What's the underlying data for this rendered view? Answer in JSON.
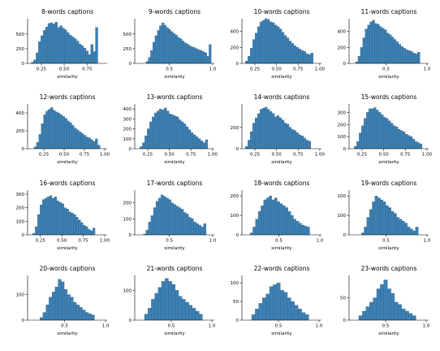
{
  "chart_data": [
    {
      "type": "bar",
      "title": "8-words captions",
      "xlabel": "similarity",
      "ylabel": "",
      "xlim": [
        0.1,
        0.97
      ],
      "ylim": [
        0,
        760
      ],
      "xticks": [
        0.25,
        0.5,
        0.75
      ],
      "xtick_labels": [
        "0.25",
        "0.50",
        "0.75"
      ],
      "yticks": [
        0,
        250,
        500
      ],
      "ytick_labels": [
        "0",
        "250",
        "500"
      ],
      "bin_start": 0.14,
      "bin_width": 0.026,
      "values": [
        20,
        60,
        180,
        370,
        470,
        560,
        620,
        680,
        690,
        670,
        700,
        610,
        640,
        600,
        570,
        520,
        480,
        450,
        420,
        380,
        330,
        300,
        260,
        210,
        150,
        320,
        200,
        610
      ]
    },
    {
      "type": "bar",
      "title": "9-words captions",
      "xlabel": "similarity",
      "ylabel": "",
      "xlim": [
        0.1,
        1.02
      ],
      "ylim": [
        0,
        760
      ],
      "xticks": [
        0.5,
        1.0
      ],
      "xtick_labels": [
        "0.5",
        "1.0"
      ],
      "yticks": [
        0,
        250,
        500
      ],
      "ytick_labels": [
        "0",
        "250",
        "500"
      ],
      "bin_start": 0.23,
      "bin_width": 0.026,
      "values": [
        30,
        100,
        220,
        360,
        470,
        560,
        640,
        690,
        650,
        610,
        580,
        540,
        510,
        480,
        440,
        420,
        380,
        350,
        330,
        300,
        280,
        270,
        250,
        230,
        220,
        200,
        180,
        120,
        320
      ]
    },
    {
      "type": "bar",
      "title": "10-words captions",
      "xlabel": "similarity",
      "ylabel": "",
      "xlim": [
        0.1,
        1.02
      ],
      "ylim": [
        0,
        560
      ],
      "xticks": [
        0.25,
        0.5,
        0.75,
        1.0
      ],
      "xtick_labels": [
        "0.25",
        "0.50",
        "0.75",
        "1.00"
      ],
      "yticks": [
        0,
        200,
        400
      ],
      "ytick_labels": [
        "0",
        "200",
        "400"
      ],
      "bin_start": 0.14,
      "bin_width": 0.028,
      "values": [
        30,
        90,
        190,
        300,
        380,
        460,
        520,
        540,
        560,
        550,
        520,
        510,
        480,
        460,
        430,
        390,
        350,
        320,
        280,
        250,
        220,
        200,
        180,
        160,
        150,
        120,
        110,
        130
      ]
    },
    {
      "type": "bar",
      "title": "11-words captions",
      "xlabel": "similarity",
      "ylabel": "",
      "xlim": [
        0.05,
        1.02
      ],
      "ylim": [
        0,
        560
      ],
      "xticks": [
        0.5,
        1.0
      ],
      "xtick_labels": [
        "0.5",
        "1.0"
      ],
      "yticks": [
        0,
        200,
        400
      ],
      "ytick_labels": [
        "0",
        "200",
        "400"
      ],
      "bin_start": 0.13,
      "bin_width": 0.029,
      "values": [
        20,
        90,
        200,
        320,
        430,
        480,
        520,
        540,
        500,
        490,
        460,
        440,
        420,
        380,
        360,
        330,
        300,
        270,
        240,
        210,
        190,
        170,
        160,
        150,
        130,
        120,
        140
      ]
    },
    {
      "type": "bar",
      "title": "12-words captions",
      "xlabel": "similarity",
      "ylabel": "",
      "xlim": [
        0.05,
        1.03
      ],
      "ylim": [
        0,
        500
      ],
      "xticks": [
        0.25,
        0.5,
        0.75,
        1.0
      ],
      "xtick_labels": [
        "0.25",
        "0.50",
        "0.75",
        "1.00"
      ],
      "yticks": [
        0,
        200,
        400
      ],
      "ytick_labels": [
        "0",
        "200",
        "400"
      ],
      "bin_start": 0.13,
      "bin_width": 0.029,
      "values": [
        20,
        70,
        160,
        280,
        380,
        420,
        440,
        460,
        430,
        410,
        400,
        380,
        360,
        340,
        310,
        290,
        260,
        230,
        210,
        190,
        170,
        150,
        130,
        120,
        100,
        80,
        110,
        40
      ]
    },
    {
      "type": "bar",
      "title": "13-words captions",
      "xlabel": "similarity",
      "ylabel": "",
      "xlim": [
        0.1,
        1.02
      ],
      "ylim": [
        0,
        450
      ],
      "xticks": [
        0.25,
        0.5,
        0.75,
        1.0
      ],
      "xtick_labels": [
        "0.25",
        "0.50",
        "0.75",
        "1.00"
      ],
      "yticks": [
        0,
        100,
        200,
        300,
        400
      ],
      "ytick_labels": [
        "0",
        "100",
        "200",
        "300",
        "400"
      ],
      "bin_start": 0.16,
      "bin_width": 0.028,
      "values": [
        20,
        60,
        130,
        200,
        270,
        320,
        360,
        380,
        400,
        390,
        410,
        380,
        350,
        340,
        330,
        320,
        290,
        270,
        250,
        220,
        190,
        160,
        140,
        120,
        100,
        80,
        60,
        90
      ]
    },
    {
      "type": "bar",
      "title": "14-words captions",
      "xlabel": "similarity",
      "ylabel": "",
      "xlim": [
        0.1,
        1.02
      ],
      "ylim": [
        0,
        420
      ],
      "xticks": [
        0.25,
        0.5,
        0.75,
        1.0
      ],
      "xtick_labels": [
        "0.25",
        "0.50",
        "0.75",
        "1.00"
      ],
      "yticks": [
        0,
        200
      ],
      "ytick_labels": [
        "0",
        "200"
      ],
      "bin_start": 0.14,
      "bin_width": 0.028,
      "values": [
        20,
        80,
        160,
        240,
        290,
        330,
        370,
        380,
        390,
        370,
        350,
        330,
        300,
        310,
        290,
        270,
        240,
        230,
        200,
        180,
        170,
        150,
        130,
        120,
        100,
        80,
        70
      ]
    },
    {
      "type": "bar",
      "title": "15-words captions",
      "xlabel": "similarity",
      "ylabel": "",
      "xlim": [
        0.1,
        1.02
      ],
      "ylim": [
        0,
        370
      ],
      "xticks": [
        0.25,
        0.5,
        0.75,
        1.0
      ],
      "xtick_labels": [
        "0.25",
        "0.50",
        "0.75",
        "1.00"
      ],
      "yticks": [
        0,
        100,
        200,
        300
      ],
      "ytick_labels": [
        "0",
        "100",
        "200",
        "300"
      ],
      "bin_start": 0.16,
      "bin_width": 0.028,
      "values": [
        20,
        60,
        130,
        190,
        250,
        300,
        330,
        330,
        340,
        320,
        300,
        280,
        260,
        250,
        230,
        210,
        190,
        180,
        160,
        150,
        140,
        120,
        110,
        100,
        80,
        60,
        50,
        40
      ]
    },
    {
      "type": "bar",
      "title": "16-words captions",
      "xlabel": "similarity",
      "ylabel": "",
      "xlim": [
        0.1,
        1.03
      ],
      "ylim": [
        0,
        330
      ],
      "xticks": [
        0.25,
        0.5,
        0.75,
        1.0
      ],
      "xtick_labels": [
        "0.25",
        "0.50",
        "0.75",
        "1.00"
      ],
      "yticks": [
        0,
        100,
        200,
        300
      ],
      "ytick_labels": [
        "0",
        "100",
        "200",
        "300"
      ],
      "bin_start": 0.16,
      "bin_width": 0.028,
      "values": [
        10,
        60,
        150,
        220,
        260,
        270,
        280,
        290,
        270,
        280,
        250,
        240,
        230,
        200,
        190,
        170,
        160,
        150,
        130,
        110,
        90,
        70,
        60,
        40,
        30,
        50
      ]
    },
    {
      "type": "bar",
      "title": "17-words captions",
      "xlabel": "similarity",
      "ylabel": "",
      "xlim": [
        0.1,
        1.02
      ],
      "ylim": [
        0,
        280
      ],
      "xticks": [
        0.5,
        1.0
      ],
      "xtick_labels": [
        "0.5",
        "1.0"
      ],
      "yticks": [
        0,
        100,
        200
      ],
      "ytick_labels": [
        "0",
        "100",
        "200"
      ],
      "bin_start": 0.2,
      "bin_width": 0.029,
      "values": [
        5,
        30,
        80,
        120,
        170,
        210,
        230,
        250,
        240,
        230,
        220,
        200,
        190,
        180,
        170,
        160,
        140,
        130,
        110,
        100,
        80,
        70,
        60,
        50,
        70
      ]
    },
    {
      "type": "bar",
      "title": "18-words captions",
      "xlabel": "similarity",
      "ylabel": "",
      "xlim": [
        0.05,
        1.02
      ],
      "ylim": [
        0,
        230
      ],
      "xticks": [
        0.5,
        1.0
      ],
      "xtick_labels": [
        "0.5",
        "1.0"
      ],
      "yticks": [
        0,
        100,
        200
      ],
      "ytick_labels": [
        "0",
        "100",
        "200"
      ],
      "bin_start": 0.15,
      "bin_width": 0.033,
      "values": [
        10,
        40,
        80,
        120,
        150,
        180,
        190,
        200,
        180,
        190,
        170,
        160,
        150,
        140,
        120,
        100,
        80,
        70,
        60,
        50,
        45,
        40
      ]
    },
    {
      "type": "bar",
      "title": "19-words captions",
      "xlabel": "similarity",
      "ylabel": "",
      "xlim": [
        0.05,
        1.02
      ],
      "ylim": [
        0,
        230
      ],
      "xticks": [
        0.5,
        1.0
      ],
      "xtick_labels": [
        "0.5",
        "1.0"
      ],
      "yticks": [
        0,
        100,
        200
      ],
      "ytick_labels": [
        "0",
        "100",
        "200"
      ],
      "bin_start": 0.2,
      "bin_width": 0.033,
      "values": [
        10,
        40,
        90,
        130,
        170,
        200,
        190,
        180,
        170,
        150,
        140,
        120,
        110,
        90,
        80,
        70,
        60,
        40,
        30,
        20,
        40
      ]
    },
    {
      "type": "bar",
      "title": "20-words captions",
      "xlabel": "similarity",
      "ylabel": "",
      "xlim": [
        0.05,
        1.02
      ],
      "ylim": [
        0,
        175
      ],
      "xticks": [
        0.5,
        1.0
      ],
      "xtick_labels": [
        "0.5",
        "1.0"
      ],
      "yticks": [
        0,
        100
      ],
      "ytick_labels": [
        "0",
        "100"
      ],
      "bin_start": 0.2,
      "bin_width": 0.037,
      "values": [
        10,
        30,
        60,
        90,
        110,
        130,
        160,
        150,
        120,
        100,
        90,
        70,
        60,
        50,
        40,
        30,
        25,
        20
      ]
    },
    {
      "type": "bar",
      "title": "21-words captions",
      "xlabel": "similarity",
      "ylabel": "",
      "xlim": [
        0.05,
        1.03
      ],
      "ylim": [
        0,
        150
      ],
      "xticks": [
        0.5,
        1.0
      ],
      "xtick_labels": [
        "0.5",
        "1.0"
      ],
      "yticks": [
        0,
        100
      ],
      "ytick_labels": [
        "0",
        "100"
      ],
      "bin_start": 0.17,
      "bin_width": 0.042,
      "values": [
        20,
        40,
        70,
        90,
        110,
        130,
        140,
        130,
        120,
        100,
        80,
        70,
        60,
        50,
        40,
        30,
        20
      ]
    },
    {
      "type": "bar",
      "title": "22-words captions",
      "xlabel": "similarity",
      "ylabel": "",
      "xlim": [
        0.05,
        1.03
      ],
      "ylim": [
        0,
        120
      ],
      "xticks": [
        0.5,
        1.0
      ],
      "xtick_labels": [
        "0.5",
        "1.0"
      ],
      "yticks": [
        0,
        50,
        100
      ],
      "ytick_labels": [
        "0",
        "50",
        "100"
      ],
      "bin_start": 0.17,
      "bin_width": 0.044,
      "values": [
        15,
        30,
        45,
        60,
        70,
        90,
        95,
        100,
        80,
        75,
        60,
        50,
        40,
        30,
        20,
        15
      ]
    },
    {
      "type": "bar",
      "title": "23-words captions",
      "xlabel": "similarity",
      "ylabel": "",
      "xlim": [
        0.05,
        1.03
      ],
      "ylim": [
        0,
        100
      ],
      "xticks": [
        0.5,
        1.0
      ],
      "xtick_labels": [
        "0.5",
        "1.0"
      ],
      "yticks": [
        0,
        50
      ],
      "ytick_labels": [
        "0",
        "50"
      ],
      "bin_start": 0.17,
      "bin_width": 0.044,
      "values": [
        10,
        20,
        30,
        40,
        50,
        70,
        80,
        90,
        70,
        60,
        40,
        35,
        25,
        20,
        15,
        10
      ]
    }
  ]
}
